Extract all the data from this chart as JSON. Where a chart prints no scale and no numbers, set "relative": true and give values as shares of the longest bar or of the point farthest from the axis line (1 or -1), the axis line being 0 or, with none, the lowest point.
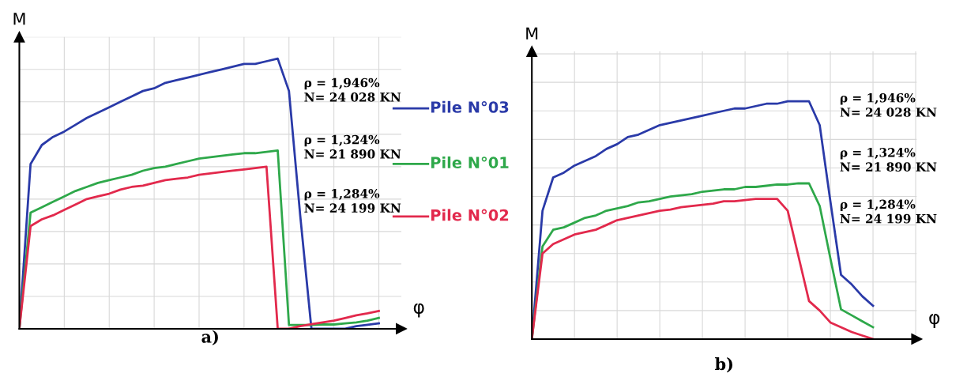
{
  "chart_data": [
    {
      "type": "line",
      "title": "a)",
      "xlabel": "φ",
      "ylabel": "M",
      "relative": true,
      "grid": true,
      "tick_labels": false,
      "legend": "right",
      "categories": [
        null,
        null,
        null,
        null,
        null,
        null,
        null,
        null,
        null,
        null,
        null,
        null,
        null,
        null,
        null,
        null,
        null,
        null,
        null,
        null,
        null,
        null,
        null,
        null,
        null,
        null,
        null,
        null,
        null,
        null,
        null,
        null,
        null
      ],
      "series": [
        {
          "name": "Pile N°03",
          "color": "#2a3aa8",
          "values": [
            0,
            0.61,
            0.68,
            0.71,
            0.73,
            0.755,
            0.78,
            0.8,
            0.82,
            0.84,
            0.86,
            0.88,
            0.89,
            0.91,
            0.92,
            0.93,
            0.94,
            0.95,
            0.96,
            0.97,
            0.98,
            0.98,
            0.99,
            1.0,
            0.88,
            0.42,
            0,
            0,
            0,
            0,
            0.01,
            0.015,
            0.02
          ]
        },
        {
          "name": "Pile N°01",
          "color": "#2ea84a",
          "values": [
            0,
            0.43,
            0.45,
            0.47,
            0.49,
            0.51,
            0.525,
            0.54,
            0.55,
            0.56,
            0.57,
            0.585,
            0.595,
            0.6,
            0.61,
            0.62,
            0.63,
            0.635,
            0.64,
            0.645,
            0.65,
            0.65,
            0.655,
            0.66,
            0.014,
            0.014,
            0.014,
            0.016,
            0.016,
            0.02,
            0.024,
            0.03,
            0.04
          ]
        },
        {
          "name": "Pile N°02",
          "color": "#e2294c",
          "values": [
            0,
            0.38,
            0.405,
            0.42,
            0.44,
            0.46,
            0.48,
            0.49,
            0.5,
            0.515,
            0.525,
            0.53,
            0.54,
            0.55,
            0.555,
            0.56,
            0.57,
            0.575,
            0.58,
            0.585,
            0.59,
            0.595,
            0.6,
            0,
            0,
            0.01,
            0.017,
            0.024,
            0.03,
            0.04,
            0.05,
            0.057,
            0.066
          ]
        }
      ],
      "annotations": [
        "ρ = 1,946%\nN= 24 028 KN",
        "ρ = 1,324%\nN= 21 890 KN",
        "ρ = 1,284%\nN= 24 199 KN"
      ]
    },
    {
      "type": "line",
      "title": "b)",
      "xlabel": "φ",
      "ylabel": "M",
      "relative": true,
      "grid": true,
      "tick_labels": false,
      "categories": [
        null,
        null,
        null,
        null,
        null,
        null,
        null,
        null,
        null,
        null,
        null,
        null,
        null,
        null,
        null,
        null,
        null,
        null,
        null,
        null,
        null,
        null,
        null,
        null,
        null,
        null,
        null,
        null,
        null,
        null,
        null,
        null,
        null
      ],
      "series": [
        {
          "color": "#2a3aa8",
          "values": [
            0,
            0.54,
            0.68,
            0.7,
            0.73,
            0.75,
            0.77,
            0.8,
            0.82,
            0.85,
            0.86,
            0.88,
            0.9,
            0.91,
            0.92,
            0.93,
            0.94,
            0.95,
            0.96,
            0.97,
            0.97,
            0.98,
            0.99,
            0.99,
            1.0,
            1.0,
            1.0,
            0.9,
            0.58,
            0.27,
            0.23,
            0.18,
            0.14
          ]
        },
        {
          "color": "#2ea84a",
          "values": [
            0,
            0.39,
            0.46,
            0.47,
            0.49,
            0.51,
            0.52,
            0.54,
            0.55,
            0.56,
            0.575,
            0.58,
            0.59,
            0.6,
            0.605,
            0.61,
            0.62,
            0.625,
            0.63,
            0.63,
            0.64,
            0.64,
            0.645,
            0.65,
            0.65,
            0.655,
            0.655,
            0.56,
            0.34,
            0.125,
            0.1,
            0.075,
            0.05
          ]
        },
        {
          "color": "#e2294c",
          "values": [
            0,
            0.36,
            0.4,
            0.42,
            0.44,
            0.45,
            0.46,
            0.48,
            0.5,
            0.51,
            0.52,
            0.53,
            0.54,
            0.545,
            0.555,
            0.56,
            0.565,
            0.57,
            0.58,
            0.58,
            0.585,
            0.59,
            0.59,
            0.59,
            0.54,
            0.35,
            0.16,
            0.12,
            0.07,
            0.05,
            0.03,
            0.015,
            0
          ]
        }
      ],
      "annotations": [
        "ρ = 1,946%\nN= 24 028 KN",
        "ρ = 1,324%\nN= 21 890 KN",
        "ρ = 1,284%\nN= 24 199 KN"
      ]
    }
  ]
}
